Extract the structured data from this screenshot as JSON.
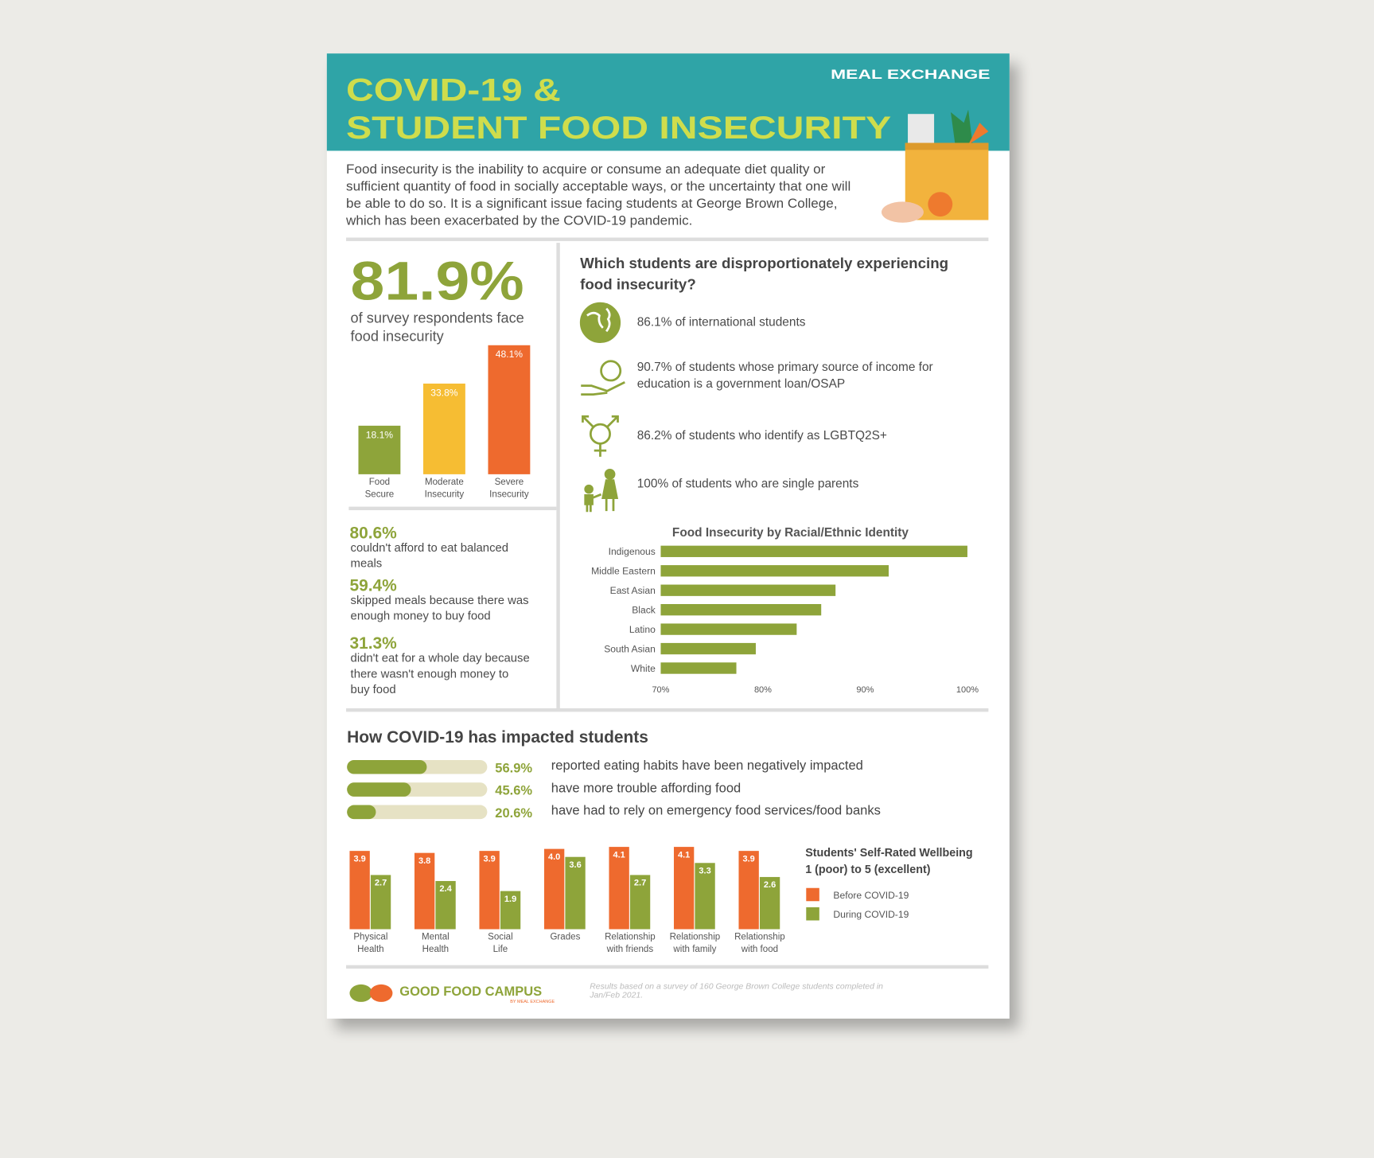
{
  "header": {
    "brand": "MEAL EXCHANGE",
    "title": [
      "COVID-19 &",
      "STUDENT FOOD INSECURITY"
    ]
  },
  "intro": [
    "Food insecurity is the inability to acquire or consume an adequate diet quality or",
    "sufficient quantity of food in socially acceptable ways, or the uncertainty that one will",
    "be able to do so. It is a significant issue facing students at George Brown College,",
    "which has been exacerbated by the COVID-19 pandemic."
  ],
  "headline": {
    "value": "81.9%",
    "text": "of survey respondents face\nfood insecurity"
  },
  "stats": [
    {
      "value": "80.6%",
      "text": "couldn't afford to eat balanced\nmeals"
    },
    {
      "value": "59.4%",
      "text": "skipped meals because there was\nenough money to buy food"
    },
    {
      "value": "31.3%",
      "text": "didn't eat for a whole day because\nthere wasn't enough money to\nbuy food"
    }
  ],
  "groups": {
    "title": "Which students are disproportionately experiencing\nfood insecurity?",
    "items": [
      "86.1% of international students",
      "90.7% of students whose primary source of income for\neducation is a government loan/OSAP",
      "86.2% of students who identify as LGBTQ2S+",
      "100% of students who are single parents"
    ]
  },
  "chart_data": [
    {
      "type": "bar",
      "categories": [
        "Food\nSecure",
        "Moderate\nInsecurity",
        "Severe\nInsecurity"
      ],
      "values": [
        18.1,
        33.8,
        48.1
      ],
      "value_labels": [
        "18.1%",
        "33.8%",
        "48.1%"
      ],
      "colors": [
        "#8ea43a",
        "#f6bd33",
        "#ee6a2e"
      ]
    },
    {
      "type": "hbar",
      "title": "Food Insecurity by Racial/Ethnic Identity",
      "categories": [
        "Indigenous",
        "Middle Eastern",
        "East Asian",
        "Black",
        "Latino",
        "South Asian",
        "White"
      ],
      "values": [
        100,
        92.3,
        87.1,
        85.7,
        83.3,
        79.3,
        77.4
      ],
      "color": "#8ea43a",
      "xlim": [
        70,
        100
      ],
      "xticks": [
        {
          "value": 70,
          "label": "70%"
        },
        {
          "value": 80,
          "label": "80%"
        },
        {
          "value": 90,
          "label": "90%"
        },
        {
          "value": 100,
          "label": "100%"
        }
      ]
    },
    {
      "type": "progress",
      "title": "How COVID-19 has impacted students",
      "categories": [
        "reported eating habits have been negatively impacted",
        "have more trouble affording food",
        "have had to rely on emergency food services/food banks"
      ],
      "values": [
        56.9,
        45.6,
        20.6
      ],
      "value_labels": [
        "56.9%",
        "45.6%",
        "20.6%"
      ],
      "color": "#8ea43a",
      "track_color": "#e6e2c4"
    },
    {
      "type": "groupedbar",
      "title": "Students' Self-Rated Wellbeing",
      "subtitle": "1 (poor) to 5 (excellent)",
      "categories": [
        "Physical\nHealth",
        "Mental\nHealth",
        "Social\nLife",
        "Grades",
        "Relationship\nwith friends",
        "Relationship\nwith family",
        "Relationship\nwith food"
      ],
      "series": [
        {
          "name": "Before COVID-19",
          "color": "#ee6a2e",
          "values": [
            3.9,
            3.8,
            3.9,
            4.0,
            4.1,
            4.1,
            3.9
          ],
          "value_labels": [
            "3.9",
            "3.8",
            "3.9",
            "4.0",
            "4.1",
            "4.1",
            "3.9"
          ]
        },
        {
          "name": "During COVID-19",
          "color": "#8ea43a",
          "values": [
            2.7,
            2.4,
            1.9,
            3.6,
            2.7,
            3.3,
            2.6
          ]
        }
      ]
    }
  ],
  "footer": {
    "logo": "GOOD FOOD CAMPUS",
    "logo_sub": "BY MEAL EXCHANGE",
    "note": "Results based on a survey of 160 George Brown College students completed in\nJan/Feb 2021."
  }
}
